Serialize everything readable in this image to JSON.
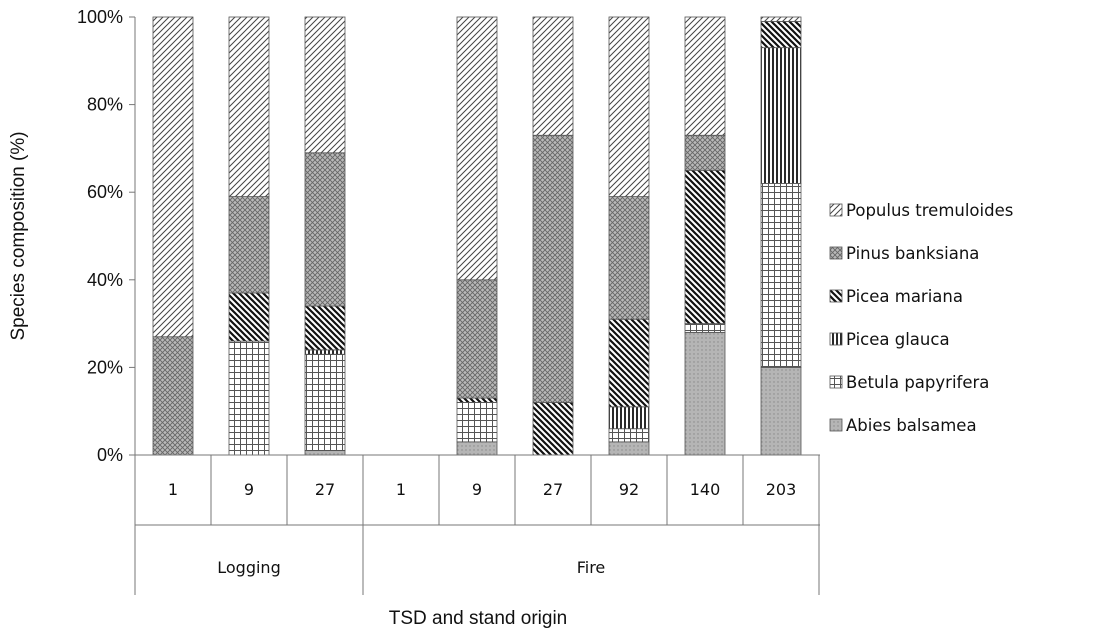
{
  "chart_data": {
    "type": "bar",
    "stacked": true,
    "percent": true,
    "xlabel": "TSD and stand origin",
    "ylabel": "Species composition (%)",
    "ylim": [
      0,
      100
    ],
    "y_ticks": [
      "0%",
      "20%",
      "40%",
      "60%",
      "80%",
      "100%"
    ],
    "legend_position": "right",
    "grid": false,
    "categories": [
      "1",
      "9",
      "27",
      "1",
      "9",
      "27",
      "92",
      "140",
      "203"
    ],
    "groups": [
      {
        "label": "Logging",
        "categories": [
          "1",
          "9",
          "27"
        ]
      },
      {
        "label": "Fire",
        "categories": [
          "1",
          "9",
          "27",
          "92",
          "140",
          "203"
        ]
      }
    ],
    "series": [
      {
        "name": "Abies balsamea",
        "pattern": "dots",
        "values": [
          0,
          0,
          1,
          0,
          3,
          0,
          3,
          28,
          20
        ]
      },
      {
        "name": "Betula papyrifera",
        "pattern": "grid",
        "values": [
          0,
          26,
          22,
          0,
          9,
          0,
          3,
          2,
          42
        ]
      },
      {
        "name": "Picea glauca",
        "pattern": "vertical",
        "values": [
          0,
          0,
          1,
          0,
          0,
          0,
          5,
          0,
          31
        ]
      },
      {
        "name": "Picea mariana",
        "pattern": "diag-down",
        "values": [
          0,
          11,
          10,
          0,
          1,
          12,
          20,
          35,
          6
        ]
      },
      {
        "name": "Pinus banksiana",
        "pattern": "cross",
        "values": [
          27,
          22,
          35,
          0,
          27,
          61,
          28,
          8,
          0
        ]
      },
      {
        "name": "Populus tremuloides",
        "pattern": "diag-up",
        "values": [
          73,
          41,
          31,
          0,
          60,
          27,
          41,
          27,
          1
        ]
      }
    ],
    "legend_order": [
      "Populus tremuloides",
      "Pinus banksiana",
      "Picea mariana",
      "Picea glauca",
      "Betula papyrifera",
      "Abies balsamea"
    ]
  }
}
